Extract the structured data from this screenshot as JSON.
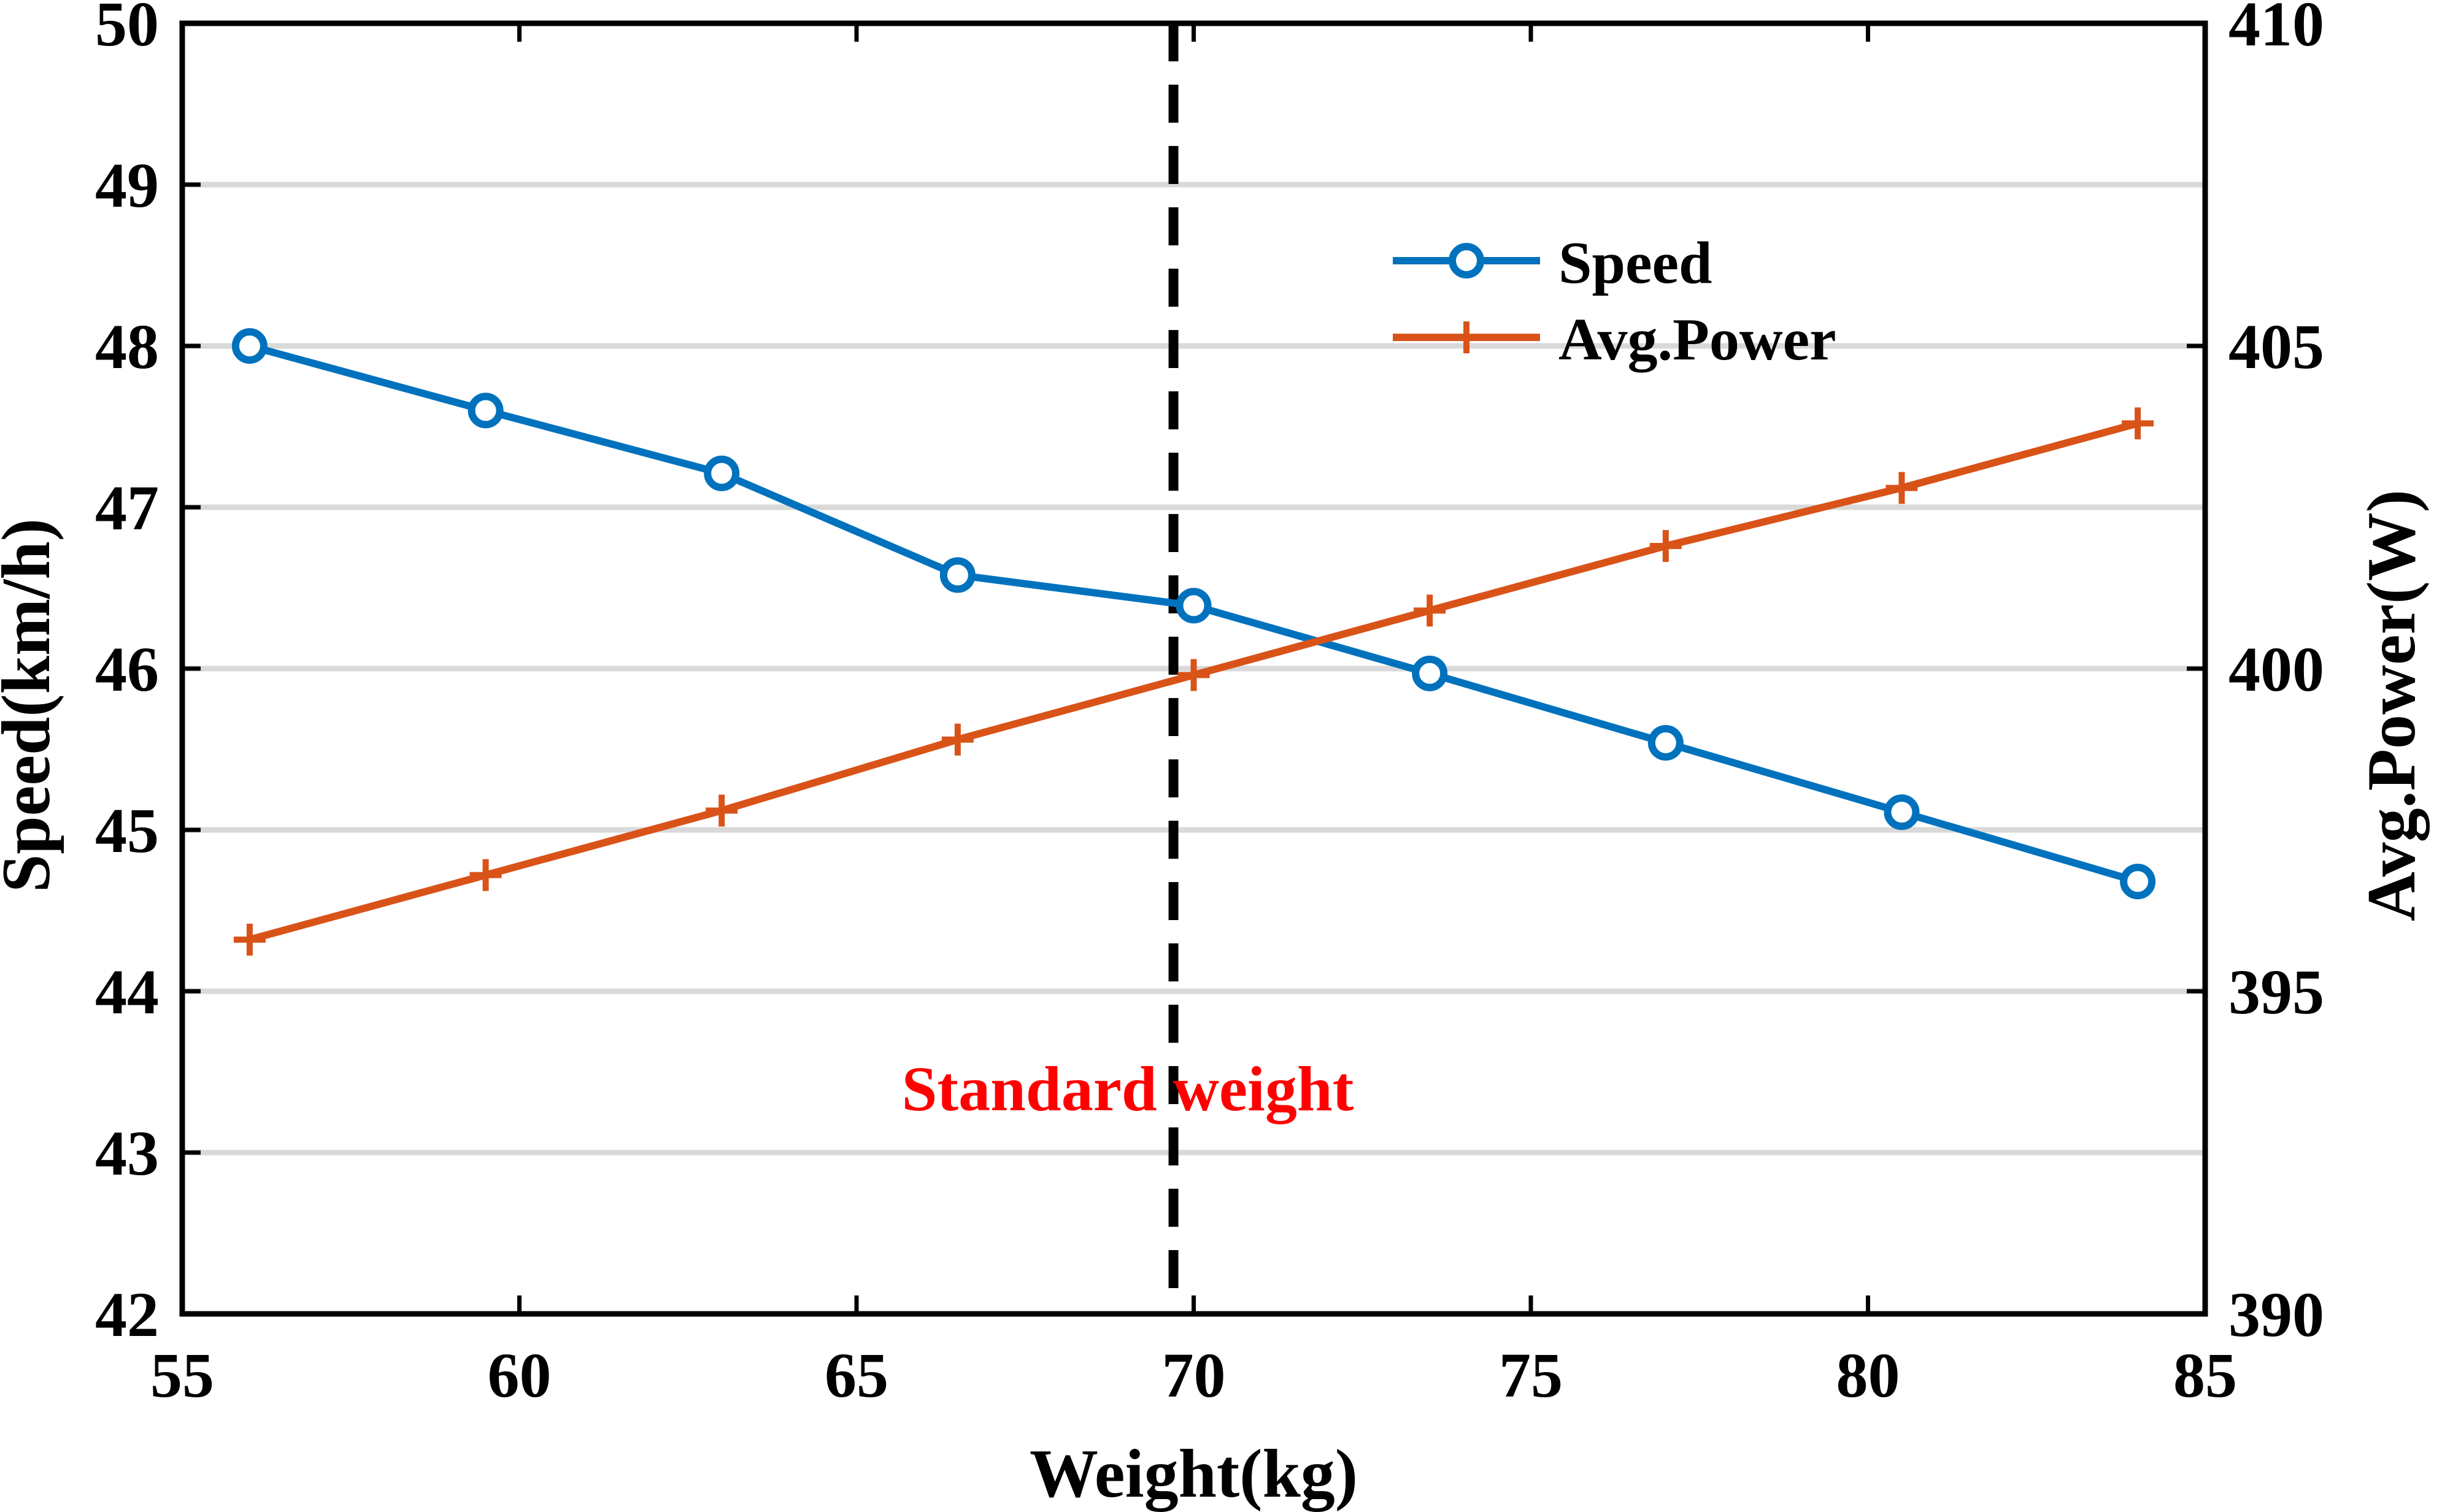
{
  "chart_data": {
    "type": "line",
    "xlabel": "Weight(kg)",
    "ylabel_left": "Speed(km/h)",
    "ylabel_right": "Avg.Power(W)",
    "xlim": [
      55,
      85
    ],
    "ylim_left": [
      42,
      50
    ],
    "ylim_right": [
      390,
      410
    ],
    "x_ticks": [
      55,
      60,
      65,
      70,
      75,
      80,
      85
    ],
    "y_ticks_left": [
      42,
      43,
      44,
      45,
      46,
      47,
      48,
      49,
      50
    ],
    "y_ticks_right": [
      390,
      395,
      400,
      405,
      410
    ],
    "grid": "horizontal",
    "legend_position": "top-right",
    "x": [
      56,
      59.5,
      63,
      66.5,
      70,
      73.5,
      77,
      80.5,
      84
    ],
    "series": [
      {
        "name": "Speed",
        "axis": "left",
        "color": "#0072BD",
        "marker": "circle",
        "values": [
          48.0,
          47.6,
          47.21,
          46.58,
          46.39,
          45.97,
          45.54,
          45.11,
          44.68
        ]
      },
      {
        "name": "Avg.Power",
        "axis": "right",
        "color": "#D95319",
        "marker": "plus",
        "values": [
          395.8,
          396.8,
          397.8,
          398.9,
          399.9,
          400.9,
          401.9,
          402.8,
          403.8
        ]
      }
    ],
    "reference_line": {
      "x": 69.7,
      "color": "#000000",
      "style": "dashed",
      "label": "Standard weight",
      "label_color": "#FF0000",
      "label_y": 43.4
    },
    "colors": {
      "grid": "#D9D9D9",
      "axes": "#000000"
    }
  }
}
